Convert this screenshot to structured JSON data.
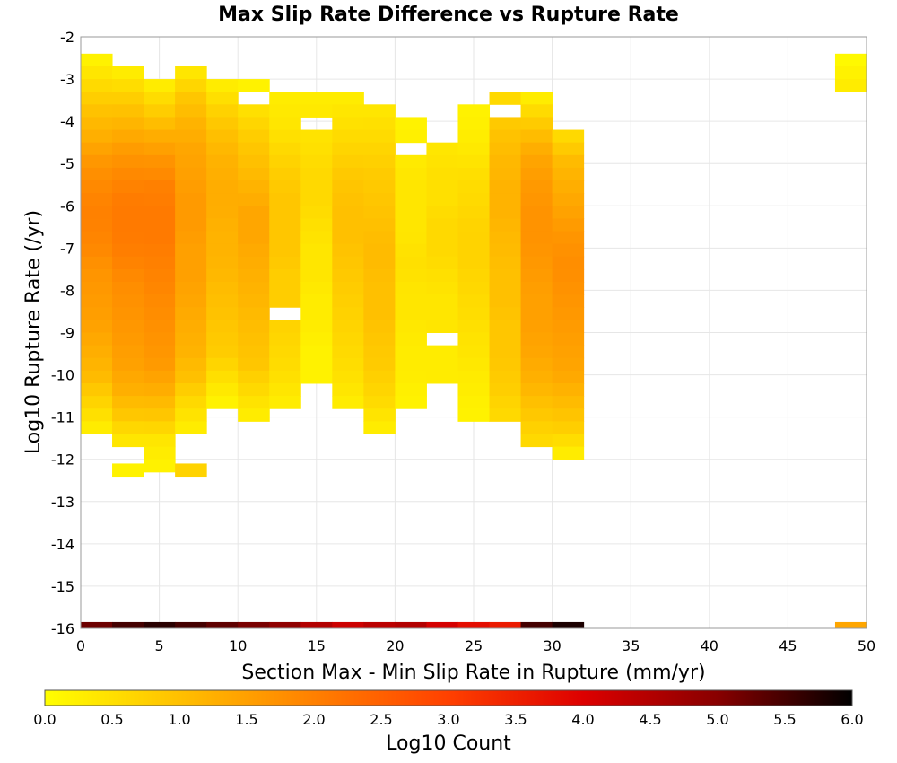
{
  "chart_data": {
    "type": "heatmap",
    "title": "Max Slip Rate Difference vs Rupture Rate",
    "xlabel": "Section Max - Min Slip Rate in Rupture (mm/yr)",
    "ylabel": "Log10 Rupture Rate (/yr)",
    "xlim": [
      0,
      50
    ],
    "ylim": [
      -16,
      -2
    ],
    "x_ticks": [
      0,
      5,
      10,
      15,
      20,
      25,
      30,
      35,
      40,
      45,
      50
    ],
    "y_ticks": [
      -2,
      -3,
      -4,
      -5,
      -6,
      -7,
      -8,
      -9,
      -10,
      -11,
      -12,
      -13,
      -14,
      -15,
      -16
    ],
    "grid": true,
    "x_bin_edges_start": 0,
    "x_bin_width": 2,
    "y_bin_width": 0.3,
    "colorbar": {
      "label": "Log10 Count",
      "range": [
        0.0,
        6.0
      ],
      "ticks": [
        "0.0",
        "0.5",
        "1.0",
        "1.5",
        "2.0",
        "2.5",
        "3.0",
        "3.5",
        "4.0",
        "4.5",
        "5.0",
        "5.5",
        "6.0"
      ],
      "colors": [
        "#ffff00",
        "#ffc000",
        "#ff8000",
        "#ff4000",
        "#dd0000",
        "#880000",
        "#000000"
      ]
    },
    "columns": [
      {
        "x_start": 0,
        "y_top": -2.4,
        "y_bottom": -11.5,
        "base": [
          0.2,
          0.6,
          1.0,
          1.3,
          1.7,
          1.9,
          2.0,
          1.9,
          1.7,
          1.6,
          1.5,
          1.3,
          1.1,
          0.7,
          0.3
        ]
      },
      {
        "x_start": 2,
        "y_top": -2.7,
        "y_bottom": -11.8,
        "base": [
          0.3,
          0.8,
          1.2,
          1.6,
          1.9,
          2.1,
          2.1,
          2.0,
          1.8,
          1.7,
          1.6,
          1.5,
          1.3,
          0.9,
          0.4
        ],
        "tail_cells": [
          [
            -12.1,
            0.2
          ]
        ]
      },
      {
        "x_start": 4,
        "y_top": -3.0,
        "y_bottom": -12.4,
        "base": [
          0.3,
          0.8,
          1.3,
          1.7,
          2.0,
          2.1,
          2.1,
          2.0,
          1.9,
          1.8,
          1.7,
          1.6,
          1.3,
          0.9,
          0.4,
          0.2
        ]
      },
      {
        "x_start": 6,
        "y_top": -2.7,
        "y_bottom": -11.5,
        "base": [
          0.4,
          0.9,
          1.2,
          1.4,
          1.5,
          1.6,
          1.6,
          1.5,
          1.5,
          1.4,
          1.3,
          1.2,
          1.0,
          0.6,
          0.3
        ],
        "tail_cells": [
          [
            -12.1,
            0.7
          ]
        ]
      },
      {
        "x_start": 8,
        "y_top": -3.0,
        "y_bottom": -10.9,
        "base": [
          0.3,
          0.7,
          1.0,
          1.2,
          1.3,
          1.3,
          1.2,
          1.2,
          1.1,
          1.0,
          0.9,
          0.8,
          0.5,
          0.2
        ]
      },
      {
        "x_start": 10,
        "y_top": -3.0,
        "y_bottom": -11.2,
        "base": [
          0.2,
          0.5,
          0.8,
          1.0,
          1.2,
          1.4,
          1.4,
          1.3,
          1.2,
          1.1,
          1.0,
          0.9,
          0.6,
          0.3
        ],
        "gap": [
          -3.3,
          -3.6
        ]
      },
      {
        "x_start": 12,
        "y_top": -3.3,
        "y_bottom": -10.9,
        "base": [
          0.3,
          0.4,
          0.6,
          0.8,
          0.9,
          0.9,
          0.9,
          0.8,
          0.8,
          0.7,
          0.6,
          0.5,
          0.3
        ],
        "gap": [
          -8.4,
          -8.7
        ]
      },
      {
        "x_start": 14,
        "y_top": -3.3,
        "y_bottom": -10.3,
        "base": [
          0.3,
          0.4,
          0.5,
          0.6,
          0.6,
          0.5,
          0.4,
          0.4,
          0.3,
          0.3,
          0.2,
          0.2
        ],
        "gap": [
          -3.9,
          -4.2
        ]
      },
      {
        "x_start": 16,
        "y_top": -3.3,
        "y_bottom": -10.9,
        "base": [
          0.3,
          0.5,
          0.7,
          0.9,
          1.0,
          1.0,
          0.9,
          0.8,
          0.7,
          0.6,
          0.5,
          0.3
        ]
      },
      {
        "x_start": 18,
        "y_top": -3.6,
        "y_bottom": -11.5,
        "base": [
          0.4,
          0.6,
          0.8,
          0.9,
          1.0,
          1.1,
          1.0,
          1.0,
          0.9,
          0.8,
          0.6,
          0.3
        ]
      },
      {
        "x_start": 20,
        "y_top": -3.9,
        "y_bottom": -10.9,
        "base": [
          0.2,
          0.3,
          0.4,
          0.4,
          0.4,
          0.5,
          0.4,
          0.4,
          0.3,
          0.3,
          0.2
        ],
        "gap": [
          -4.5,
          -4.8
        ]
      },
      {
        "x_start": 22,
        "y_top": -4.5,
        "y_bottom": -10.3,
        "base": [
          0.4,
          0.5,
          0.5,
          0.6,
          0.6,
          0.5,
          0.4,
          0.4,
          0.3,
          0.3
        ],
        "gap": [
          -9.0,
          -9.3
        ]
      },
      {
        "x_start": 24,
        "y_top": -3.6,
        "y_bottom": -11.2,
        "base": [
          0.2,
          0.3,
          0.5,
          0.6,
          0.7,
          0.7,
          0.6,
          0.5,
          0.4,
          0.3,
          0.2
        ]
      },
      {
        "x_start": 26,
        "y_top": -3.3,
        "y_bottom": -11.2,
        "base": [
          0.6,
          0.9,
          1.1,
          1.2,
          1.2,
          1.1,
          1.0,
          1.0,
          0.9,
          0.9,
          0.8,
          0.6
        ],
        "gap": [
          -3.6,
          -3.9
        ]
      },
      {
        "x_start": 28,
        "y_top": -3.3,
        "y_bottom": -11.8,
        "base": [
          0.3,
          0.9,
          1.4,
          1.6,
          1.7,
          1.7,
          1.6,
          1.5,
          1.5,
          1.4,
          1.2,
          0.9,
          0.6
        ]
      },
      {
        "x_start": 30,
        "y_top": -4.2,
        "y_bottom": -12.1,
        "base": [
          0.6,
          1.1,
          1.3,
          1.5,
          1.7,
          1.8,
          1.7,
          1.6,
          1.5,
          1.4,
          1.1,
          0.8,
          0.3
        ]
      },
      {
        "x_start": 48,
        "y_top": -2.4,
        "y_bottom": -3.3,
        "base": [
          0.1,
          0.3
        ]
      }
    ],
    "bottom_row": {
      "y": -16,
      "values": [
        {
          "x_start": 0,
          "v": 5.2
        },
        {
          "x_start": 2,
          "v": 5.5
        },
        {
          "x_start": 4,
          "v": 5.7
        },
        {
          "x_start": 6,
          "v": 5.5
        },
        {
          "x_start": 8,
          "v": 5.3
        },
        {
          "x_start": 10,
          "v": 5.1
        },
        {
          "x_start": 12,
          "v": 4.9
        },
        {
          "x_start": 14,
          "v": 4.5
        },
        {
          "x_start": 16,
          "v": 4.2
        },
        {
          "x_start": 18,
          "v": 4.4
        },
        {
          "x_start": 20,
          "v": 4.5
        },
        {
          "x_start": 22,
          "v": 4.1
        },
        {
          "x_start": 24,
          "v": 3.8
        },
        {
          "x_start": 26,
          "v": 3.6
        },
        {
          "x_start": 28,
          "v": 5.5
        },
        {
          "x_start": 30,
          "v": 5.8
        },
        {
          "x_start": 48,
          "v": 1.4
        }
      ]
    }
  }
}
